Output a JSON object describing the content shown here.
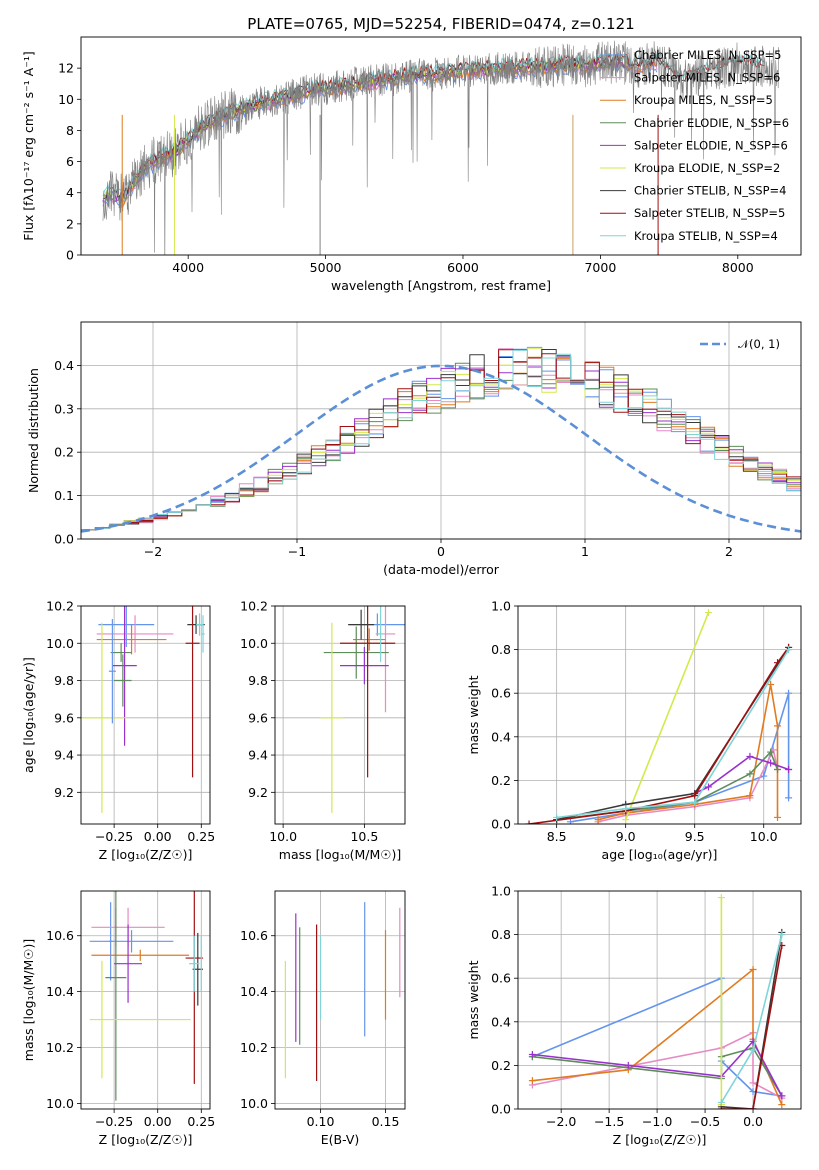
{
  "chart_data": [
    {
      "id": "spectrum",
      "type": "line",
      "title": "PLATE=0765, MJD=52254, FIBERID=0474, z=0.121",
      "xlabel": "wavelength [Angstrom, rest frame]",
      "ylabel": "Flux [fλ10⁻¹⁷ erg cm⁻² s⁻¹ A⁻¹]",
      "xlim": [
        3220,
        8460
      ],
      "ylim": [
        0,
        14
      ],
      "xticks": [
        "4000",
        "5000",
        "6000",
        "7000",
        "8000"
      ],
      "yticks": [
        "0",
        "2",
        "4",
        "6",
        "8",
        "10",
        "12"
      ],
      "grid": false,
      "legend": "top-right",
      "data_curve": {
        "color": "#808080",
        "x": [
          3380,
          3450,
          3520,
          3600,
          3700,
          3800,
          3900,
          4000,
          4100,
          4200,
          4300,
          4400,
          4500,
          4600,
          4700,
          4800,
          4900,
          5000,
          5100,
          5200,
          5300,
          5400,
          5500,
          5600,
          5700,
          5800,
          5900,
          6000,
          6100,
          6200,
          6300,
          6400,
          6500,
          6600,
          6700,
          6800,
          6900,
          7000,
          7100,
          7200,
          7300,
          7400,
          7500,
          7600,
          7700,
          7800,
          7900,
          8000,
          8100,
          8200,
          8300
        ],
        "y": [
          3.8,
          3.9,
          3.6,
          4.6,
          5.8,
          6.2,
          6.6,
          7.4,
          8.2,
          8.7,
          9.1,
          9.4,
          9.7,
          9.9,
          10.1,
          10.3,
          10.6,
          10.7,
          10.8,
          11.0,
          11.1,
          11.2,
          11.3,
          11.5,
          11.6,
          11.6,
          11.7,
          11.8,
          11.9,
          11.9,
          12.0,
          12.0,
          12.1,
          12.1,
          12.2,
          12.2,
          12.1,
          12.3,
          12.4,
          12.3,
          12.1,
          12.4,
          12.0,
          11.2,
          11.5,
          11.9,
          12.1,
          12.3,
          12.2,
          12.1,
          12.0
        ]
      },
      "series": [
        {
          "name": "Chabrier MILES, N_SSP=5",
          "color": "#6495ed"
        },
        {
          "name": "Salpeter MILES, N_SSP=6",
          "color": "#e78ac3"
        },
        {
          "name": "Kroupa MILES, N_SSP=5",
          "color": "#e07b20"
        },
        {
          "name": "Chabrier ELODIE, N_SSP=6",
          "color": "#5e8c5a"
        },
        {
          "name": "Salpeter ELODIE, N_SSP=6",
          "color": "#9932cc"
        },
        {
          "name": "Kroupa ELODIE, N_SSP=2",
          "color": "#d4e94b"
        },
        {
          "name": "Chabrier STELIB, N_SSP=4",
          "color": "#3a3a3a"
        },
        {
          "name": "Salpeter STELIB, N_SSP=5",
          "color": "#a01010"
        },
        {
          "name": "Kroupa STELIB, N_SSP=4",
          "color": "#7fd4d8"
        }
      ]
    },
    {
      "id": "residuals",
      "type": "line",
      "xlabel": "(data-model)/error",
      "ylabel": "Normed distribution",
      "xlim": [
        -2.5,
        2.5
      ],
      "ylim": [
        0,
        0.5
      ],
      "xticks": [
        "−2",
        "−1",
        "0",
        "1",
        "2"
      ],
      "yticks": [
        "0.0",
        "0.1",
        "0.2",
        "0.3",
        "0.4"
      ],
      "grid": true,
      "legend": "top-right",
      "legend_label": "𝒩(0, 1)",
      "gaussian": {
        "mu": 0,
        "sigma": 1,
        "color": "#5b8fd6"
      },
      "hist_edges_start": -2.5,
      "hist_bin": 0.1,
      "hist_base": [
        0.025,
        0.028,
        0.033,
        0.038,
        0.043,
        0.05,
        0.058,
        0.066,
        0.076,
        0.087,
        0.099,
        0.112,
        0.126,
        0.141,
        0.157,
        0.174,
        0.192,
        0.21,
        0.229,
        0.248,
        0.267,
        0.286,
        0.304,
        0.321,
        0.337,
        0.351,
        0.363,
        0.373,
        0.381,
        0.386,
        0.389,
        0.389,
        0.386,
        0.381,
        0.373,
        0.363,
        0.351,
        0.337,
        0.321,
        0.304,
        0.286,
        0.267,
        0.248,
        0.229,
        0.21,
        0.192,
        0.174,
        0.157,
        0.141,
        0.126
      ]
    },
    {
      "id": "age-vs-Z",
      "type": "scatter",
      "xlabel": "Z [log₁₀(Z/Z☉)]",
      "ylabel": "age  [log₁₀(age/yr)]",
      "xlim": [
        -0.44,
        0.3
      ],
      "ylim": [
        9.03,
        10.2
      ],
      "xticks": [
        "−0.25",
        "0.00",
        "0.25"
      ],
      "xtick_values": [
        -0.25,
        0.0,
        0.25
      ],
      "yticks": [
        "9.2",
        "9.4",
        "9.6",
        "9.8",
        "10.0",
        "10.2"
      ],
      "ytick_values": [
        9.2,
        9.4,
        9.6,
        9.8,
        10.0,
        10.2
      ],
      "grid": true,
      "errorbars": [
        {
          "series": 0,
          "x": -0.18,
          "xerr": 0.16,
          "y": 10.1,
          "yerr": 0.12
        },
        {
          "series": 1,
          "x": -0.13,
          "xerr": 0.22,
          "y": 10.05,
          "yerr": 0.1
        },
        {
          "series": 2,
          "x": -0.15,
          "xerr": 0.2,
          "y": 10.02,
          "yerr": 0.08
        },
        {
          "series": 3,
          "x": -0.21,
          "xerr": 0.06,
          "y": 9.95,
          "yerr": 0.05
        },
        {
          "series": 4,
          "x": -0.19,
          "xerr": 0.07,
          "y": 9.88,
          "yerr": 0.43
        },
        {
          "series": 5,
          "x": -0.32,
          "xerr": 0.14,
          "y": 9.6,
          "yerr": 0.51
        },
        {
          "series": 6,
          "x": 0.22,
          "xerr": 0.05,
          "y": 10.1,
          "yerr": 0.05
        },
        {
          "series": 7,
          "x": 0.2,
          "xerr": 0.04,
          "y": 10.0,
          "yerr": 0.72
        },
        {
          "series": 8,
          "x": 0.24,
          "xerr": 0.02,
          "y": 10.1,
          "yerr": 0.06
        },
        {
          "series": 3,
          "x": -0.2,
          "xerr": 0.05,
          "y": 9.8,
          "yerr": 0.14
        },
        {
          "series": 0,
          "x": -0.26,
          "xerr": 0.02,
          "y": 9.85,
          "yerr": 0.28
        },
        {
          "series": 8,
          "x": 0.26,
          "xerr": 0.01,
          "y": 10.05,
          "yerr": 0.1
        }
      ]
    },
    {
      "id": "age-vs-mass",
      "type": "scatter",
      "xlabel": "mass [log₁₀(M/M☉)]",
      "xlim": [
        9.95,
        10.75
      ],
      "ylim": [
        9.03,
        10.2
      ],
      "xticks": [
        "10.0",
        "10.5"
      ],
      "xtick_values": [
        10.0,
        10.5
      ],
      "yticks": [
        "9.2",
        "9.4",
        "9.6",
        "9.8",
        "10.0",
        "10.2"
      ],
      "ytick_values": [
        9.2,
        9.4,
        9.6,
        9.8,
        10.0,
        10.2
      ],
      "grid": true,
      "errorbars": [
        {
          "series": 0,
          "x": 10.58,
          "xerr": 0.17,
          "y": 10.1,
          "yerr": 0.06
        },
        {
          "series": 1,
          "x": 10.63,
          "xerr": 0.06,
          "y": 10.05,
          "yerr": 0.42
        },
        {
          "series": 2,
          "x": 10.53,
          "xerr": 0.1,
          "y": 10.02,
          "yerr": 0.06
        },
        {
          "series": 3,
          "x": 10.45,
          "xerr": 0.2,
          "y": 9.95,
          "yerr": 0.14
        },
        {
          "series": 4,
          "x": 10.5,
          "xerr": 0.15,
          "y": 9.88,
          "yerr": 0.1
        },
        {
          "series": 5,
          "x": 10.3,
          "xerr": 0.07,
          "y": 9.6,
          "yerr": 0.51
        },
        {
          "series": 6,
          "x": 10.48,
          "xerr": 0.08,
          "y": 10.1,
          "yerr": 0.08
        },
        {
          "series": 7,
          "x": 10.52,
          "xerr": 0.17,
          "y": 10.0,
          "yerr": 0.72
        },
        {
          "series": 8,
          "x": 10.6,
          "xerr": 0.02,
          "y": 10.05,
          "yerr": 0.15
        }
      ]
    },
    {
      "id": "weight-vs-age",
      "type": "line",
      "xlabel": "age  [log₁₀(age/yr)]",
      "ylabel": "mass weight",
      "xlim": [
        8.22,
        10.27
      ],
      "ylim": [
        0,
        1.0
      ],
      "xticks": [
        "8.5",
        "9.0",
        "9.5",
        "10.0"
      ],
      "xtick_values": [
        8.5,
        9.0,
        9.5,
        10.0
      ],
      "yticks": [
        "0.0",
        "0.2",
        "0.4",
        "0.6",
        "0.8",
        "1.0"
      ],
      "ytick_values": [
        0.0,
        0.2,
        0.4,
        0.6,
        0.8,
        1.0
      ],
      "grid": true,
      "series": [
        {
          "series": 0,
          "x": [
            8.6,
            9.0,
            9.5,
            10.0,
            10.18,
            10.18,
            10.18
          ],
          "y": [
            0.01,
            0.05,
            0.1,
            0.22,
            0.6,
            0.25,
            0.12
          ]
        },
        {
          "series": 1,
          "x": [
            8.8,
            9.0,
            9.5,
            9.9,
            10.07,
            10.1
          ],
          "y": [
            0.01,
            0.04,
            0.08,
            0.12,
            0.34,
            0.25
          ]
        },
        {
          "series": 2,
          "x": [
            8.8,
            9.0,
            9.5,
            9.9,
            10.05,
            10.1,
            10.1
          ],
          "y": [
            0.02,
            0.05,
            0.09,
            0.13,
            0.64,
            0.45,
            0.03
          ]
        },
        {
          "series": 3,
          "x": [
            8.5,
            9.0,
            9.5,
            9.9,
            10.05,
            10.1
          ],
          "y": [
            0.02,
            0.06,
            0.1,
            0.23,
            0.33,
            0.25
          ]
        },
        {
          "series": 4,
          "x": [
            9.5,
            9.6,
            9.9,
            10.05,
            10.18
          ],
          "y": [
            0.14,
            0.17,
            0.31,
            0.28,
            0.25
          ]
        },
        {
          "series": 5,
          "x": [
            9.0,
            9.6
          ],
          "y": [
            0.02,
            0.97
          ]
        },
        {
          "series": 6,
          "x": [
            8.5,
            9.0,
            9.5,
            10.18
          ],
          "y": [
            0.02,
            0.09,
            0.14,
            0.81
          ]
        },
        {
          "series": 7,
          "x": [
            8.3,
            9.0,
            9.5,
            10.1,
            10.18
          ],
          "y": [
            0.0,
            0.06,
            0.13,
            0.74,
            0.81
          ]
        },
        {
          "series": 8,
          "x": [
            8.5,
            9.0,
            9.5,
            10.18
          ],
          "y": [
            0.03,
            0.07,
            0.1,
            0.8
          ]
        }
      ]
    },
    {
      "id": "mass-vs-Z",
      "type": "scatter",
      "xlabel": "Z [log₁₀(Z/Z☉)]",
      "ylabel": "mass [log₁₀(M/M☉)]",
      "xlim": [
        -0.44,
        0.3
      ],
      "ylim": [
        9.98,
        10.76
      ],
      "xticks": [
        "−0.25",
        "0.00",
        "0.25"
      ],
      "xtick_values": [
        -0.25,
        0.0,
        0.25
      ],
      "yticks": [
        "10.0",
        "10.2",
        "10.4",
        "10.6"
      ],
      "ytick_values": [
        10.0,
        10.2,
        10.4,
        10.6
      ],
      "grid": true,
      "errorbars": [
        {
          "series": 0,
          "x": -0.15,
          "xerr": 0.24,
          "y": 10.58,
          "yerr": 0.04
        },
        {
          "series": 0,
          "x": -0.27,
          "xerr": 0.01,
          "y": 10.58,
          "yerr": 0.14
        },
        {
          "series": 1,
          "x": -0.17,
          "xerr": 0.21,
          "y": 10.63,
          "yerr": 0.07
        },
        {
          "series": 1,
          "x": -0.24,
          "xerr": 0.01,
          "y": 10.63,
          "yerr": 0.07
        },
        {
          "series": 2,
          "x": -0.1,
          "xerr": 0.28,
          "y": 10.53,
          "yerr": 0.02
        },
        {
          "series": 3,
          "x": -0.24,
          "xerr": 0.06,
          "y": 10.45,
          "yerr": 0.44
        },
        {
          "series": 4,
          "x": -0.17,
          "xerr": 0.08,
          "y": 10.5,
          "yerr": 0.14
        },
        {
          "series": 5,
          "x": -0.32,
          "xerr": 0.0,
          "y": 10.3,
          "yerr": 0.21
        },
        {
          "series": 5,
          "x": -0.1,
          "xerr": 0.29,
          "y": 10.3,
          "yerr": 0.0
        },
        {
          "series": 6,
          "x": 0.23,
          "xerr": 0.03,
          "y": 10.48,
          "yerr": 0.13
        },
        {
          "series": 7,
          "x": 0.21,
          "xerr": 0.05,
          "y": 10.52,
          "yerr": 0.45
        },
        {
          "series": 8,
          "x": 0.21,
          "xerr": 0.03,
          "y": 10.5,
          "yerr": 0.1
        },
        {
          "series": 8,
          "x": 0.25,
          "xerr": 0.0,
          "y": 10.5,
          "yerr": 0.1
        }
      ]
    },
    {
      "id": "mass-vs-EBV",
      "type": "scatter",
      "xlabel": "E(B-V)",
      "xlim": [
        0.065,
        0.165
      ],
      "ylim": [
        9.98,
        10.76
      ],
      "xticks": [
        "0.10",
        "0.15"
      ],
      "xtick_values": [
        0.1,
        0.15
      ],
      "yticks": [
        "10.0",
        "10.2",
        "10.4",
        "10.6"
      ],
      "ytick_values": [
        10.0,
        10.2,
        10.4,
        10.6
      ],
      "grid": true,
      "errorbars": [
        {
          "series": 5,
          "x": 0.073,
          "xerr": 0,
          "y": 10.3,
          "yerr": 0.21
        },
        {
          "series": 4,
          "x": 0.081,
          "xerr": 0,
          "y": 10.45,
          "yerr": 0.23
        },
        {
          "series": 3,
          "x": 0.084,
          "xerr": 0,
          "y": 10.42,
          "yerr": 0.21
        },
        {
          "series": 7,
          "x": 0.097,
          "xerr": 0,
          "y": 10.36,
          "yerr": 0.28
        },
        {
          "series": 8,
          "x": 0.1,
          "xerr": 0,
          "y": 10.45,
          "yerr": 0.15
        },
        {
          "series": 0,
          "x": 0.134,
          "xerr": 0,
          "y": 10.48,
          "yerr": 0.24
        },
        {
          "series": 2,
          "x": 0.15,
          "xerr": 0,
          "y": 10.46,
          "yerr": 0.16
        },
        {
          "series": 1,
          "x": 0.161,
          "xerr": 0,
          "y": 10.54,
          "yerr": 0.16
        }
      ]
    },
    {
      "id": "weight-vs-Z",
      "type": "line",
      "xlabel": "Z [log₁₀(Z/Z☉)]",
      "ylabel": "mass weight",
      "xlim": [
        -2.45,
        0.5
      ],
      "ylim": [
        0,
        1.0
      ],
      "xticks": [
        "−2.0",
        "−1.5",
        "−1.0",
        "−0.5",
        "0.0"
      ],
      "xtick_values": [
        -2.0,
        -1.5,
        -1.0,
        -0.5,
        0.0
      ],
      "yticks": [
        "0.0",
        "0.2",
        "0.4",
        "0.6",
        "0.8",
        "1.0"
      ],
      "ytick_values": [
        0.0,
        0.2,
        0.4,
        0.6,
        0.8,
        1.0
      ],
      "grid": true,
      "series": [
        {
          "series": 0,
          "x": [
            -2.3,
            -0.33,
            -0.33,
            0.0,
            0.3
          ],
          "y": [
            0.24,
            0.6,
            0.22,
            0.08,
            0.06
          ]
        },
        {
          "series": 1,
          "x": [
            -2.3,
            -0.33,
            0.0,
            0.0,
            0.3
          ],
          "y": [
            0.11,
            0.28,
            0.35,
            0.12,
            0.05
          ]
        },
        {
          "series": 2,
          "x": [
            -2.3,
            -1.3,
            -0.0,
            0.0,
            0.3
          ],
          "y": [
            0.13,
            0.18,
            0.64,
            0.32,
            0.02
          ]
        },
        {
          "series": 3,
          "x": [
            -2.3,
            -0.33,
            -0.33,
            0.0,
            0.3
          ],
          "y": [
            0.24,
            0.14,
            0.24,
            0.28,
            0.06
          ]
        },
        {
          "series": 4,
          "x": [
            -2.3,
            -1.3,
            -0.33,
            0.0,
            0.3
          ],
          "y": [
            0.25,
            0.2,
            0.15,
            0.31,
            0.06
          ]
        },
        {
          "series": 5,
          "x": [
            -0.33,
            -0.33
          ],
          "y": [
            0.02,
            0.97
          ]
        },
        {
          "series": 6,
          "x": [
            -0.33,
            0.0,
            0.3
          ],
          "y": [
            0.01,
            0.0,
            0.81
          ]
        },
        {
          "series": 7,
          "x": [
            -0.33,
            0.0,
            0.3
          ],
          "y": [
            0.0,
            0.0,
            0.75
          ]
        },
        {
          "series": 8,
          "x": [
            -0.33,
            0.0,
            0.3
          ],
          "y": [
            0.03,
            0.27,
            0.8
          ]
        }
      ]
    }
  ]
}
